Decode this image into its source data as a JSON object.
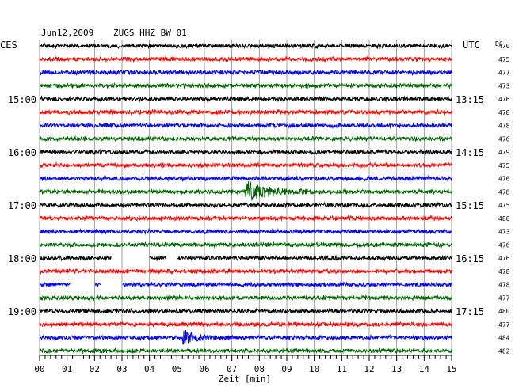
{
  "header": {
    "date": "Jun12,2009",
    "station": "ZUGS HHZ BW 01",
    "left_zone": "CES",
    "right_zone": "UTC",
    "dc_label": "DC"
  },
  "chart_data": {
    "type": "seismogram",
    "xlabel": "Zeit [min]",
    "xlim": [
      0,
      15
    ],
    "x_ticks": [
      "00",
      "01",
      "02",
      "03",
      "04",
      "05",
      "06",
      "07",
      "08",
      "09",
      "10",
      "11",
      "12",
      "13",
      "14",
      "15"
    ],
    "grid": "vertical, every minute",
    "trace_colors": [
      "#000000",
      "#ff0000",
      "#0000ff",
      "#006400"
    ],
    "left_time_labels": [
      {
        "trace": 4,
        "text": "15:00"
      },
      {
        "trace": 8,
        "text": "16:00"
      },
      {
        "trace": 12,
        "text": "17:00"
      },
      {
        "trace": 16,
        "text": "18:00"
      },
      {
        "trace": 20,
        "text": "19:00"
      }
    ],
    "right_time_labels": [
      {
        "trace": 4,
        "text": "13:15"
      },
      {
        "trace": 8,
        "text": "14:15"
      },
      {
        "trace": 12,
        "text": "15:15"
      },
      {
        "trace": 16,
        "text": "16:15"
      },
      {
        "trace": 20,
        "text": "17:15"
      }
    ],
    "dc_offsets": [
      "470",
      "475",
      "477",
      "473",
      "476",
      "478",
      "478",
      "476",
      "479",
      "475",
      "476",
      "478",
      "475",
      "480",
      "473",
      "476",
      "476",
      "478",
      "478",
      "477",
      "480",
      "477",
      "484",
      "482"
    ],
    "gaps": [
      {
        "trace": 16,
        "from_min": 2.6,
        "to_min": 4.0
      },
      {
        "trace": 16,
        "from_min": 4.6,
        "to_min": 5.0
      },
      {
        "trace": 18,
        "from_min": 1.1,
        "to_min": 2.0
      },
      {
        "trace": 18,
        "from_min": 2.2,
        "to_min": 3.0
      }
    ],
    "events": [
      {
        "trace": 11,
        "at_min": 7.5,
        "amplitude": 12,
        "decay_min": 0.8
      },
      {
        "trace": 22,
        "at_min": 5.2,
        "amplitude": 9,
        "decay_min": 0.35
      }
    ]
  }
}
